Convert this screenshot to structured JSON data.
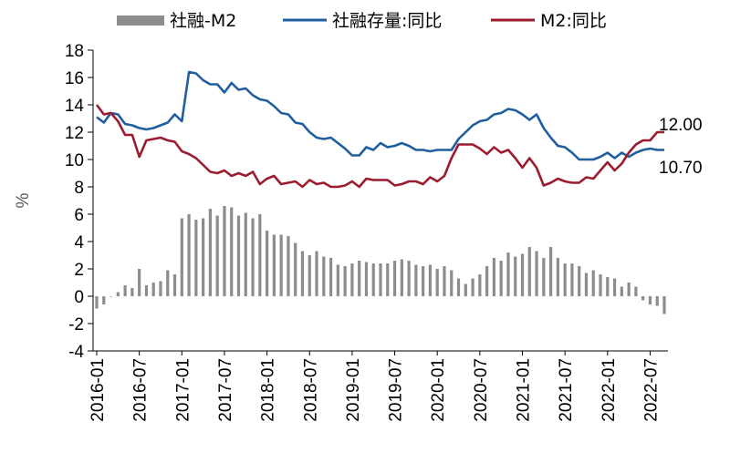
{
  "chart_data": {
    "type": "bar+line",
    "ylabel": "%",
    "ylim": [
      -4,
      18
    ],
    "yticks": [
      "-4",
      "-2",
      "0",
      "2",
      "4",
      "6",
      "8",
      "10",
      "12",
      "14",
      "16",
      "18"
    ],
    "xtick_labels": [
      "2016-01",
      "2016-07",
      "2017-01",
      "2017-07",
      "2018-01",
      "2018-07",
      "2019-01",
      "2019-07",
      "2020-01",
      "2020-07",
      "2021-01",
      "2021-07",
      "2022-01",
      "2022-07"
    ],
    "grid": false,
    "legend_position": "top",
    "colors": {
      "bar": "#8c8c8c",
      "tsf_stock": "#1f5fa0",
      "m2": "#9b1c2e"
    },
    "series": [
      {
        "name": "社融-M2",
        "type": "bar",
        "values": [
          -0.9,
          -0.6,
          0.0,
          0.3,
          0.8,
          0.6,
          2.0,
          0.8,
          1.0,
          1.1,
          1.9,
          1.6,
          5.7,
          6.0,
          5.6,
          5.7,
          6.4,
          5.9,
          6.6,
          6.5,
          5.9,
          6.1,
          5.7,
          6.0,
          4.8,
          4.5,
          4.5,
          4.4,
          3.9,
          3.3,
          3.0,
          3.3,
          2.9,
          2.8,
          2.3,
          2.2,
          2.4,
          2.6,
          2.5,
          2.4,
          2.4,
          2.4,
          2.6,
          2.7,
          2.6,
          2.3,
          2.2,
          2.3,
          2.0,
          2.2,
          1.9,
          1.3,
          0.9,
          1.3,
          1.6,
          2.2,
          2.8,
          2.6,
          3.2,
          2.9,
          3.1,
          3.6,
          3.3,
          2.8,
          3.6,
          2.8,
          2.4,
          2.4,
          2.2,
          1.7,
          1.9,
          1.6,
          1.4,
          1.3,
          0.7,
          1.0,
          0.7,
          -0.3,
          -0.6,
          -0.7,
          -1.3
        ]
      },
      {
        "name": "社融存量:同比",
        "type": "line",
        "values": [
          13.1,
          12.7,
          13.4,
          13.3,
          12.6,
          12.5,
          12.3,
          12.2,
          12.3,
          12.5,
          12.7,
          13.3,
          12.8,
          16.4,
          16.3,
          15.8,
          15.5,
          15.5,
          14.9,
          15.6,
          15.1,
          15.2,
          14.7,
          14.4,
          14.3,
          13.9,
          13.4,
          13.3,
          12.7,
          12.6,
          12.0,
          11.6,
          11.5,
          11.6,
          11.2,
          10.8,
          10.3,
          10.3,
          10.9,
          10.7,
          11.2,
          10.9,
          11.0,
          11.2,
          11.0,
          10.7,
          10.7,
          10.6,
          10.7,
          10.7,
          10.7,
          11.5,
          12.0,
          12.5,
          12.8,
          12.9,
          13.3,
          13.4,
          13.7,
          13.6,
          13.3,
          12.9,
          13.3,
          12.3,
          11.6,
          11.0,
          10.9,
          10.5,
          10.0,
          10.0,
          10.0,
          10.2,
          10.5,
          10.1,
          10.5,
          10.2,
          10.5,
          10.7,
          10.8,
          10.7,
          10.7
        ]
      },
      {
        "name": "M2:同比",
        "type": "line",
        "values": [
          14.0,
          13.3,
          13.4,
          12.8,
          11.8,
          11.8,
          10.2,
          11.4,
          11.5,
          11.6,
          11.4,
          11.3,
          10.6,
          10.4,
          10.1,
          9.6,
          9.1,
          9.0,
          9.2,
          8.8,
          9.0,
          8.8,
          9.1,
          8.2,
          8.6,
          8.8,
          8.2,
          8.3,
          8.4,
          8.0,
          8.5,
          8.2,
          8.3,
          8.0,
          8.0,
          8.1,
          8.4,
          8.0,
          8.6,
          8.5,
          8.5,
          8.5,
          8.1,
          8.2,
          8.4,
          8.4,
          8.2,
          8.7,
          8.4,
          8.8,
          10.1,
          11.1,
          11.1,
          11.1,
          10.8,
          10.4,
          10.9,
          10.5,
          10.7,
          10.1,
          9.4,
          10.1,
          9.4,
          8.1,
          8.3,
          8.6,
          8.4,
          8.3,
          8.3,
          8.7,
          8.6,
          9.2,
          9.8,
          9.2,
          9.7,
          10.5,
          11.1,
          11.4,
          11.4,
          12.0,
          12.0
        ]
      }
    ],
    "annotations": [
      {
        "text": "12.00",
        "series": "M2:同比"
      },
      {
        "text": "10.70",
        "series": "社融存量:同比"
      }
    ]
  }
}
